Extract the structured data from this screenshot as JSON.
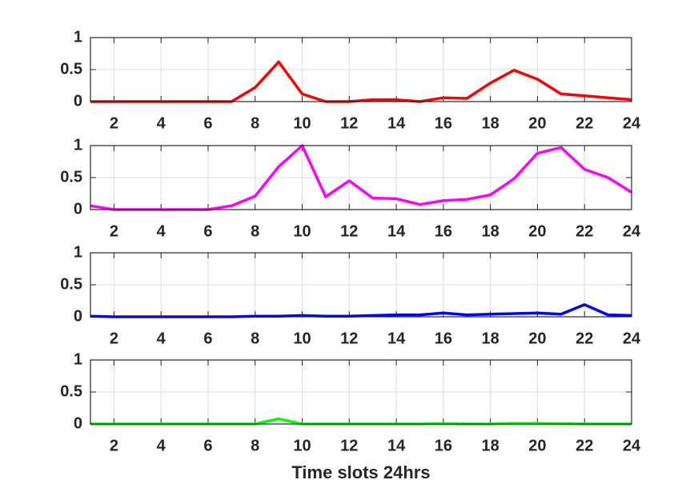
{
  "chart_data": [
    {
      "type": "line",
      "x": [
        1,
        2,
        3,
        4,
        5,
        6,
        7,
        8,
        9,
        10,
        11,
        12,
        13,
        14,
        15,
        16,
        17,
        18,
        19,
        20,
        21,
        22,
        23,
        24
      ],
      "series": [
        {
          "color": "#ff0000",
          "values": [
            0,
            0,
            0,
            0,
            0,
            0,
            0,
            0.22,
            0.62,
            0.12,
            0,
            0,
            0.03,
            0.03,
            0,
            0.06,
            0.05,
            0.29,
            0.49,
            0.35,
            0.12,
            0.09,
            0.06,
            0.03
          ]
        }
      ],
      "xlim": [
        1,
        24
      ],
      "xticks": [
        2,
        4,
        6,
        8,
        10,
        12,
        14,
        16,
        18,
        20,
        22,
        24
      ],
      "ylim": [
        0,
        1
      ],
      "yticks": [
        0,
        0.5,
        1
      ],
      "grid": true
    },
    {
      "type": "line",
      "x": [
        1,
        2,
        3,
        4,
        5,
        6,
        7,
        8,
        9,
        10,
        11,
        12,
        13,
        14,
        15,
        16,
        17,
        18,
        19,
        20,
        21,
        22,
        23,
        24
      ],
      "series": [
        {
          "color": "#ff00ff",
          "values": [
            0.06,
            0,
            0,
            0,
            0,
            0,
            0.06,
            0.21,
            0.67,
            1,
            0.2,
            0.45,
            0.18,
            0.17,
            0.08,
            0.14,
            0.16,
            0.23,
            0.48,
            0.88,
            0.97,
            0.63,
            0.5,
            0.27
          ]
        }
      ],
      "xlim": [
        1,
        24
      ],
      "xticks": [
        2,
        4,
        6,
        8,
        10,
        12,
        14,
        16,
        18,
        20,
        22,
        24
      ],
      "ylim": [
        0,
        1
      ],
      "yticks": [
        0,
        0.5,
        1
      ],
      "grid": true
    },
    {
      "type": "line",
      "x": [
        1,
        2,
        3,
        4,
        5,
        6,
        7,
        8,
        9,
        10,
        11,
        12,
        13,
        14,
        15,
        16,
        17,
        18,
        19,
        20,
        21,
        22,
        23,
        24
      ],
      "series": [
        {
          "color": "#0000ff",
          "values": [
            0.01,
            0,
            0,
            0,
            0,
            0,
            0,
            0.01,
            0.01,
            0.02,
            0.01,
            0.01,
            0.02,
            0.03,
            0.03,
            0.06,
            0.03,
            0.04,
            0.05,
            0.06,
            0.04,
            0.19,
            0.03,
            0.02
          ]
        }
      ],
      "xlim": [
        1,
        24
      ],
      "xticks": [
        2,
        4,
        6,
        8,
        10,
        12,
        14,
        16,
        18,
        20,
        22,
        24
      ],
      "ylim": [
        0,
        1
      ],
      "yticks": [
        0,
        0.5,
        1
      ],
      "grid": true
    },
    {
      "type": "line",
      "x": [
        1,
        2,
        3,
        4,
        5,
        6,
        7,
        8,
        9,
        10,
        11,
        12,
        13,
        14,
        15,
        16,
        17,
        18,
        19,
        20,
        21,
        22,
        23,
        24
      ],
      "series": [
        {
          "color": "#00ff00",
          "values": [
            0,
            0,
            0,
            0,
            0,
            0,
            0,
            0,
            0.08,
            0,
            0,
            0,
            0,
            0,
            0,
            0.005,
            0,
            0,
            0.01,
            0.01,
            0.005,
            0,
            0,
            0
          ]
        }
      ],
      "xlim": [
        1,
        24
      ],
      "xticks": [
        2,
        4,
        6,
        8,
        10,
        12,
        14,
        16,
        18,
        20,
        22,
        24
      ],
      "ylim": [
        0,
        1
      ],
      "yticks": [
        0,
        0.5,
        1
      ],
      "grid": true,
      "xlabel": "Time slots 24hrs"
    }
  ]
}
